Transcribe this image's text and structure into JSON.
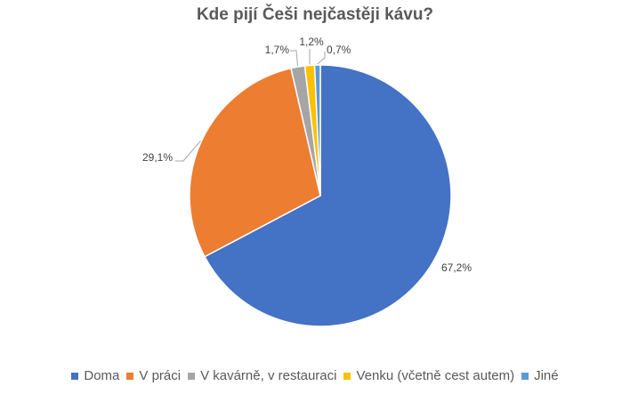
{
  "chart_data": {
    "type": "pie",
    "title": "Kde pijí Češi nejčastěji kávu?",
    "slices": [
      {
        "label": "Doma",
        "value": 67.2,
        "value_label": "67,2%",
        "color": "#4472C4"
      },
      {
        "label": "V práci",
        "value": 29.1,
        "value_label": "29,1%",
        "color": "#ED7D31"
      },
      {
        "label": "V kavárně, v restauraci",
        "value": 1.7,
        "value_label": "1,7%",
        "color": "#A5A5A5"
      },
      {
        "label": "Venku (včetně cest autem)",
        "value": 1.2,
        "value_label": "1,2%",
        "color": "#FFC000"
      },
      {
        "label": "Jiné",
        "value": 0.7,
        "value_label": "0,7%",
        "color": "#5B9BD5"
      }
    ],
    "legend_position": "bottom",
    "start_angle_deg": 0,
    "direction": "clockwise"
  }
}
